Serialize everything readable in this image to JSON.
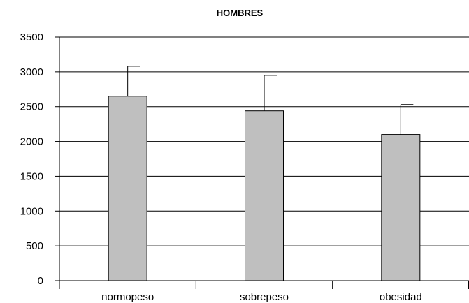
{
  "chart_data": {
    "type": "bar",
    "title": "HOMBRES",
    "xlabel": "",
    "ylabel": "",
    "categories": [
      "normopeso",
      "sobrepeso",
      "obesidad"
    ],
    "values": [
      2650,
      2440,
      2100
    ],
    "error_upper": [
      3080,
      2950,
      2530
    ],
    "ylim": [
      0,
      3500
    ],
    "yticks": [
      0,
      500,
      1000,
      1500,
      2000,
      2500,
      3000,
      3500
    ],
    "ytick_labels": [
      "0",
      "500",
      "1000",
      "1500",
      "2000",
      "2500",
      "3000",
      "3500"
    ],
    "grid": true,
    "legend": "none",
    "bar_color": "#bfbfbf",
    "bar_edge_color": "#000000"
  }
}
